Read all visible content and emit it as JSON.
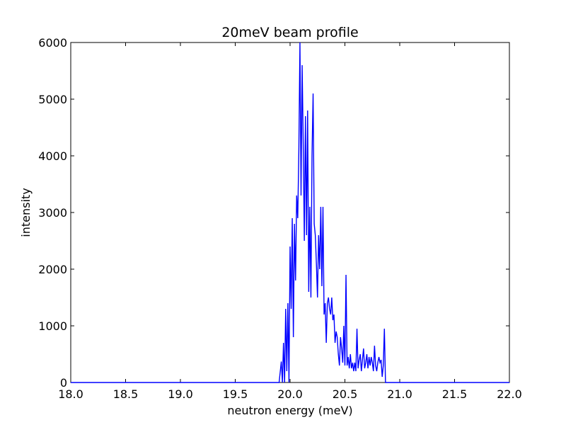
{
  "chart_data": {
    "type": "line",
    "title": "20meV beam profile",
    "xlabel": "neutron energy (meV)",
    "ylabel": "intensity",
    "xlim": [
      18.0,
      22.0
    ],
    "ylim": [
      0,
      6000
    ],
    "xticks": [
      "18.0",
      "18.5",
      "19.0",
      "19.5",
      "20.0",
      "20.5",
      "21.0",
      "21.5",
      "22.0"
    ],
    "yticks": [
      "0",
      "1000",
      "2000",
      "3000",
      "4000",
      "5000",
      "6000"
    ],
    "grid": false,
    "line_color": "#0000ff",
    "series": [
      {
        "x": [
          18.0,
          19.9,
          19.92,
          19.93,
          19.94,
          19.95,
          19.96,
          19.97,
          19.98,
          19.99,
          20.0,
          20.01,
          20.02,
          20.03,
          20.04,
          20.05,
          20.06,
          20.07,
          20.08,
          20.09,
          20.1,
          20.11,
          20.12,
          20.13,
          20.14,
          20.15,
          20.16,
          20.17,
          20.18,
          20.19,
          20.2,
          20.21,
          20.22,
          20.23,
          20.24,
          20.25,
          20.26,
          20.27,
          20.28,
          20.29,
          20.3,
          20.31,
          20.32,
          20.33,
          20.34,
          20.35,
          20.36,
          20.37,
          20.38,
          20.39,
          20.4,
          20.41,
          20.42,
          20.43,
          20.44,
          20.45,
          20.46,
          20.47,
          20.48,
          20.49,
          20.5,
          20.51,
          20.52,
          20.53,
          20.54,
          20.55,
          20.56,
          20.57,
          20.58,
          20.59,
          20.6,
          20.61,
          20.62,
          20.63,
          20.64,
          20.65,
          20.66,
          20.67,
          20.68,
          20.69,
          20.7,
          20.71,
          20.72,
          20.73,
          20.74,
          20.75,
          20.76,
          20.77,
          20.78,
          20.79,
          20.8,
          20.81,
          20.82,
          20.83,
          20.84,
          20.85,
          20.86,
          20.87,
          20.88,
          22.0
        ],
        "y": [
          0,
          0,
          370,
          0,
          700,
          0,
          1300,
          200,
          1400,
          0,
          2400,
          1300,
          2900,
          800,
          2800,
          1800,
          3300,
          2900,
          4100,
          6000,
          3300,
          5600,
          4200,
          2500,
          4700,
          2600,
          4800,
          1600,
          3100,
          1500,
          4000,
          5100,
          2800,
          2600,
          2100,
          1500,
          2600,
          2000,
          3100,
          1700,
          3100,
          1200,
          1400,
          700,
          1400,
          1500,
          1300,
          1200,
          1500,
          1100,
          1200,
          700,
          900,
          800,
          500,
          300,
          800,
          600,
          350,
          1000,
          300,
          1900,
          300,
          450,
          250,
          500,
          250,
          350,
          200,
          350,
          200,
          950,
          250,
          400,
          500,
          200,
          400,
          600,
          250,
          350,
          500,
          250,
          450,
          300,
          450,
          350,
          200,
          650,
          300,
          200,
          350,
          450,
          350,
          400,
          100,
          300,
          950,
          0,
          0,
          0
        ]
      }
    ]
  }
}
